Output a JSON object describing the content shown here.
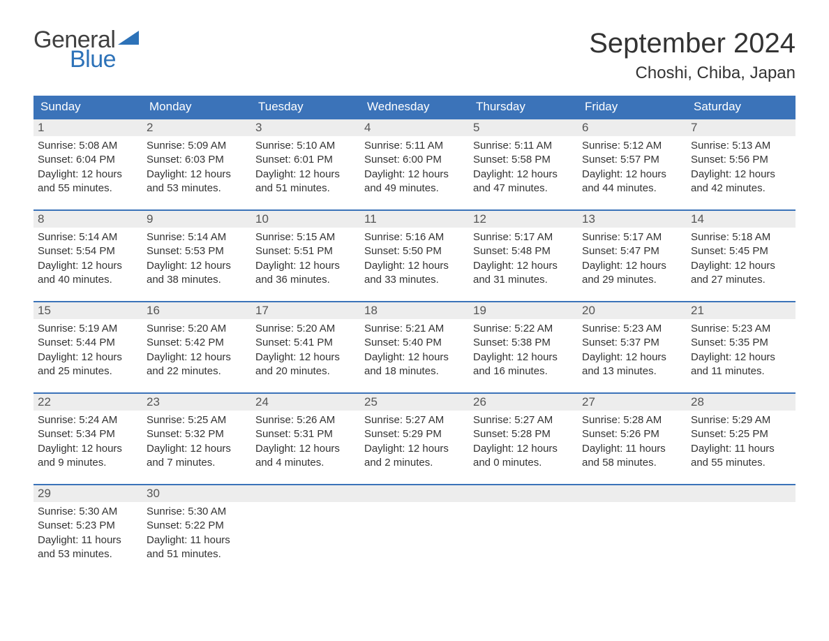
{
  "logo": {
    "word1": "General",
    "word2": "Blue",
    "text_color": "#404040",
    "accent_color": "#2d72b8"
  },
  "header": {
    "month_title": "September 2024",
    "location": "Choshi, Chiba, Japan"
  },
  "colors": {
    "header_bar": "#3b73b9",
    "header_bar_text": "#ffffff",
    "week_divider": "#3b73b9",
    "daynum_bg": "#ededed",
    "body_text": "#333333",
    "daynum_text": "#555555",
    "page_bg": "#ffffff"
  },
  "typography": {
    "month_title_fontsize": 40,
    "location_fontsize": 24,
    "weekday_fontsize": 17,
    "daynum_fontsize": 17,
    "body_fontsize": 15,
    "logo_fontsize": 34
  },
  "calendar": {
    "weekdays": [
      "Sunday",
      "Monday",
      "Tuesday",
      "Wednesday",
      "Thursday",
      "Friday",
      "Saturday"
    ],
    "weeks": [
      [
        {
          "n": "1",
          "sunrise": "Sunrise: 5:08 AM",
          "sunset": "Sunset: 6:04 PM",
          "day1": "Daylight: 12 hours",
          "day2": "and 55 minutes."
        },
        {
          "n": "2",
          "sunrise": "Sunrise: 5:09 AM",
          "sunset": "Sunset: 6:03 PM",
          "day1": "Daylight: 12 hours",
          "day2": "and 53 minutes."
        },
        {
          "n": "3",
          "sunrise": "Sunrise: 5:10 AM",
          "sunset": "Sunset: 6:01 PM",
          "day1": "Daylight: 12 hours",
          "day2": "and 51 minutes."
        },
        {
          "n": "4",
          "sunrise": "Sunrise: 5:11 AM",
          "sunset": "Sunset: 6:00 PM",
          "day1": "Daylight: 12 hours",
          "day2": "and 49 minutes."
        },
        {
          "n": "5",
          "sunrise": "Sunrise: 5:11 AM",
          "sunset": "Sunset: 5:58 PM",
          "day1": "Daylight: 12 hours",
          "day2": "and 47 minutes."
        },
        {
          "n": "6",
          "sunrise": "Sunrise: 5:12 AM",
          "sunset": "Sunset: 5:57 PM",
          "day1": "Daylight: 12 hours",
          "day2": "and 44 minutes."
        },
        {
          "n": "7",
          "sunrise": "Sunrise: 5:13 AM",
          "sunset": "Sunset: 5:56 PM",
          "day1": "Daylight: 12 hours",
          "day2": "and 42 minutes."
        }
      ],
      [
        {
          "n": "8",
          "sunrise": "Sunrise: 5:14 AM",
          "sunset": "Sunset: 5:54 PM",
          "day1": "Daylight: 12 hours",
          "day2": "and 40 minutes."
        },
        {
          "n": "9",
          "sunrise": "Sunrise: 5:14 AM",
          "sunset": "Sunset: 5:53 PM",
          "day1": "Daylight: 12 hours",
          "day2": "and 38 minutes."
        },
        {
          "n": "10",
          "sunrise": "Sunrise: 5:15 AM",
          "sunset": "Sunset: 5:51 PM",
          "day1": "Daylight: 12 hours",
          "day2": "and 36 minutes."
        },
        {
          "n": "11",
          "sunrise": "Sunrise: 5:16 AM",
          "sunset": "Sunset: 5:50 PM",
          "day1": "Daylight: 12 hours",
          "day2": "and 33 minutes."
        },
        {
          "n": "12",
          "sunrise": "Sunrise: 5:17 AM",
          "sunset": "Sunset: 5:48 PM",
          "day1": "Daylight: 12 hours",
          "day2": "and 31 minutes."
        },
        {
          "n": "13",
          "sunrise": "Sunrise: 5:17 AM",
          "sunset": "Sunset: 5:47 PM",
          "day1": "Daylight: 12 hours",
          "day2": "and 29 minutes."
        },
        {
          "n": "14",
          "sunrise": "Sunrise: 5:18 AM",
          "sunset": "Sunset: 5:45 PM",
          "day1": "Daylight: 12 hours",
          "day2": "and 27 minutes."
        }
      ],
      [
        {
          "n": "15",
          "sunrise": "Sunrise: 5:19 AM",
          "sunset": "Sunset: 5:44 PM",
          "day1": "Daylight: 12 hours",
          "day2": "and 25 minutes."
        },
        {
          "n": "16",
          "sunrise": "Sunrise: 5:20 AM",
          "sunset": "Sunset: 5:42 PM",
          "day1": "Daylight: 12 hours",
          "day2": "and 22 minutes."
        },
        {
          "n": "17",
          "sunrise": "Sunrise: 5:20 AM",
          "sunset": "Sunset: 5:41 PM",
          "day1": "Daylight: 12 hours",
          "day2": "and 20 minutes."
        },
        {
          "n": "18",
          "sunrise": "Sunrise: 5:21 AM",
          "sunset": "Sunset: 5:40 PM",
          "day1": "Daylight: 12 hours",
          "day2": "and 18 minutes."
        },
        {
          "n": "19",
          "sunrise": "Sunrise: 5:22 AM",
          "sunset": "Sunset: 5:38 PM",
          "day1": "Daylight: 12 hours",
          "day2": "and 16 minutes."
        },
        {
          "n": "20",
          "sunrise": "Sunrise: 5:23 AM",
          "sunset": "Sunset: 5:37 PM",
          "day1": "Daylight: 12 hours",
          "day2": "and 13 minutes."
        },
        {
          "n": "21",
          "sunrise": "Sunrise: 5:23 AM",
          "sunset": "Sunset: 5:35 PM",
          "day1": "Daylight: 12 hours",
          "day2": "and 11 minutes."
        }
      ],
      [
        {
          "n": "22",
          "sunrise": "Sunrise: 5:24 AM",
          "sunset": "Sunset: 5:34 PM",
          "day1": "Daylight: 12 hours",
          "day2": "and 9 minutes."
        },
        {
          "n": "23",
          "sunrise": "Sunrise: 5:25 AM",
          "sunset": "Sunset: 5:32 PM",
          "day1": "Daylight: 12 hours",
          "day2": "and 7 minutes."
        },
        {
          "n": "24",
          "sunrise": "Sunrise: 5:26 AM",
          "sunset": "Sunset: 5:31 PM",
          "day1": "Daylight: 12 hours",
          "day2": "and 4 minutes."
        },
        {
          "n": "25",
          "sunrise": "Sunrise: 5:27 AM",
          "sunset": "Sunset: 5:29 PM",
          "day1": "Daylight: 12 hours",
          "day2": "and 2 minutes."
        },
        {
          "n": "26",
          "sunrise": "Sunrise: 5:27 AM",
          "sunset": "Sunset: 5:28 PM",
          "day1": "Daylight: 12 hours",
          "day2": "and 0 minutes."
        },
        {
          "n": "27",
          "sunrise": "Sunrise: 5:28 AM",
          "sunset": "Sunset: 5:26 PM",
          "day1": "Daylight: 11 hours",
          "day2": "and 58 minutes."
        },
        {
          "n": "28",
          "sunrise": "Sunrise: 5:29 AM",
          "sunset": "Sunset: 5:25 PM",
          "day1": "Daylight: 11 hours",
          "day2": "and 55 minutes."
        }
      ],
      [
        {
          "n": "29",
          "sunrise": "Sunrise: 5:30 AM",
          "sunset": "Sunset: 5:23 PM",
          "day1": "Daylight: 11 hours",
          "day2": "and 53 minutes."
        },
        {
          "n": "30",
          "sunrise": "Sunrise: 5:30 AM",
          "sunset": "Sunset: 5:22 PM",
          "day1": "Daylight: 11 hours",
          "day2": "and 51 minutes."
        },
        {
          "empty": true
        },
        {
          "empty": true
        },
        {
          "empty": true
        },
        {
          "empty": true
        },
        {
          "empty": true
        }
      ]
    ]
  }
}
